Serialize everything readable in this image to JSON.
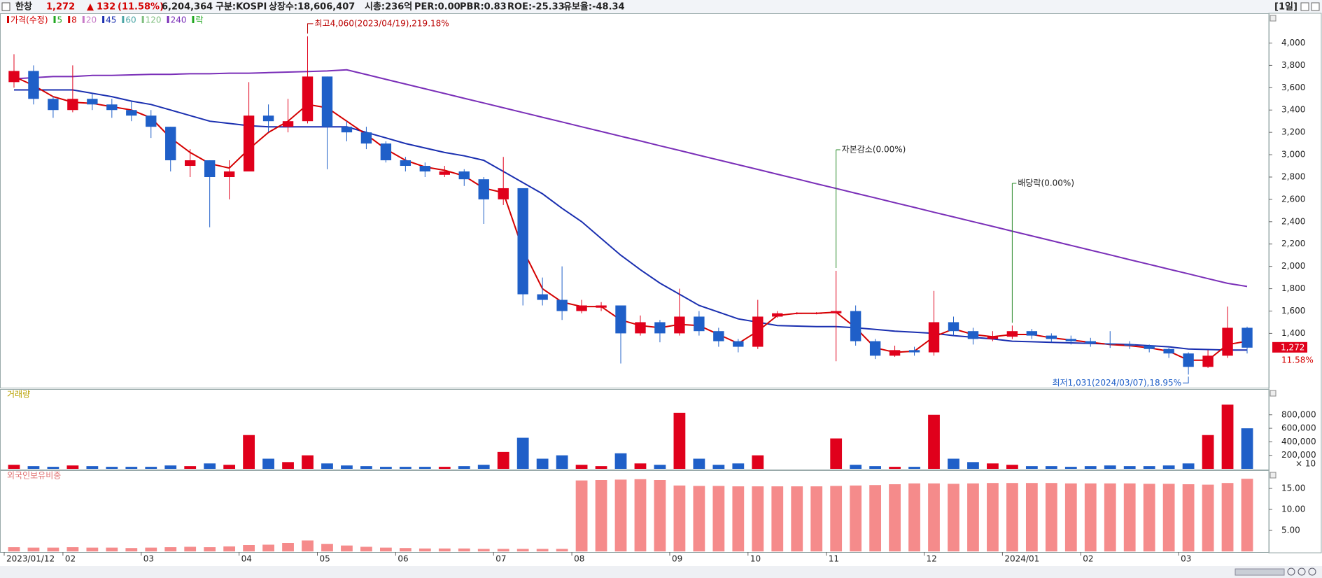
{
  "header": {
    "name": "한창",
    "price": "1,272",
    "arrow": "▲",
    "change": "132",
    "change_pct": "(11.58%)",
    "volume": "6,204,364",
    "market": "구분:KOSPI",
    "listed": "상장수:18,606,407",
    "cap": "시총:236억",
    "per": "PER:0.00",
    "pbr": "PBR:0.83",
    "roe": "ROE:-25.33",
    "reserve": "유보율:-48.34",
    "period": "[1일]"
  },
  "chart_data": [
    {
      "type": "candlestick",
      "legend": [
        {
          "label": "가격(수정)",
          "color": "#d40000"
        },
        {
          "label": "5",
          "color": "#21a821"
        },
        {
          "label": "8",
          "color": "#d40000"
        },
        {
          "label": "20",
          "color": "#c77ac7"
        },
        {
          "label": "45",
          "color": "#1a2fb0"
        },
        {
          "label": "60",
          "color": "#4aa5a5"
        },
        {
          "label": "120",
          "color": "#7fbf7f"
        },
        {
          "label": "240",
          "color": "#7a2fb8"
        },
        {
          "label": "락",
          "color": "#21a821"
        }
      ],
      "categories": [
        "2023/01/12",
        null,
        null,
        "02",
        null,
        null,
        null,
        "03",
        null,
        null,
        null,
        null,
        "04",
        null,
        null,
        null,
        "05",
        null,
        null,
        null,
        "06",
        null,
        null,
        null,
        null,
        "07",
        null,
        null,
        null,
        "08",
        null,
        null,
        null,
        null,
        "09",
        null,
        null,
        null,
        "10",
        null,
        null,
        null,
        "11",
        null,
        null,
        null,
        null,
        "12",
        null,
        null,
        null,
        "2024/01",
        null,
        null,
        null,
        "02",
        null,
        null,
        null,
        null,
        "03",
        null,
        null,
        null
      ],
      "open": [
        3650,
        3750,
        3500,
        3400,
        3500,
        3450,
        3400,
        3350,
        3250,
        2900,
        2950,
        2800,
        2850,
        3350,
        3250,
        3300,
        3700,
        3250,
        3200,
        3100,
        2950,
        2900,
        2820,
        2850,
        2780,
        2600,
        2700,
        1750,
        1700,
        1600,
        1630,
        1650,
        1400,
        1500,
        1400,
        1550,
        1420,
        1330,
        1280,
        1550,
        1575,
        1575,
        1580,
        1600,
        1330,
        1200,
        1250,
        1230,
        1500,
        1420,
        1350,
        1370,
        1420,
        1380,
        1350,
        1330,
        1310,
        1300,
        1290,
        1260,
        1220,
        1100,
        1200,
        1450
      ],
      "high": [
        3900,
        3800,
        3520,
        3800,
        3550,
        3500,
        3480,
        3400,
        3250,
        3050,
        2950,
        2950,
        3650,
        3450,
        3500,
        4060,
        3700,
        3300,
        3250,
        3120,
        2980,
        2930,
        2900,
        2870,
        2800,
        2980,
        2700,
        1900,
        2000,
        1700,
        1680,
        1650,
        1560,
        1520,
        1800,
        1600,
        1450,
        1350,
        1700,
        1600,
        1590,
        1590,
        1960,
        1650,
        1350,
        1290,
        1280,
        1780,
        1550,
        1450,
        1420,
        1470,
        1440,
        1400,
        1380,
        1360,
        1420,
        1330,
        1300,
        1270,
        1230,
        1250,
        1640,
        1460
      ],
      "low": [
        3600,
        3450,
        3330,
        3380,
        3400,
        3330,
        3300,
        3150,
        2850,
        2800,
        2350,
        2600,
        2850,
        3200,
        3200,
        3280,
        2870,
        3120,
        3050,
        2930,
        2850,
        2800,
        2800,
        2720,
        2380,
        2550,
        1650,
        1650,
        1520,
        1580,
        1600,
        1130,
        1380,
        1320,
        1380,
        1380,
        1280,
        1230,
        1260,
        1540,
        1570,
        1570,
        1150,
        1290,
        1170,
        1190,
        1200,
        1200,
        1380,
        1300,
        1330,
        1350,
        1350,
        1320,
        1300,
        1280,
        1270,
        1260,
        1230,
        1180,
        1031,
        1090,
        1180,
        1220
      ],
      "close": [
        3750,
        3500,
        3400,
        3500,
        3450,
        3400,
        3350,
        3250,
        2950,
        2950,
        2800,
        2850,
        3350,
        3300,
        3300,
        3700,
        3250,
        3200,
        3100,
        2950,
        2900,
        2850,
        2850,
        2780,
        2600,
        2700,
        1750,
        1700,
        1600,
        1650,
        1650,
        1400,
        1500,
        1400,
        1550,
        1420,
        1330,
        1280,
        1550,
        1580,
        1580,
        1580,
        1600,
        1330,
        1200,
        1250,
        1230,
        1500,
        1420,
        1350,
        1370,
        1420,
        1380,
        1350,
        1330,
        1310,
        1300,
        1290,
        1260,
        1220,
        1100,
        1200,
        1450,
        1272
      ],
      "up_color": "#e0001b",
      "down_color": "#1f5fc8",
      "ma_lines": [
        {
          "name": "240",
          "color": "#7a2fb8",
          "width": 2,
          "values": [
            3680,
            3690,
            3700,
            3700,
            3710,
            3710,
            3715,
            3720,
            3720,
            3725,
            3725,
            3730,
            3730,
            3735,
            3740,
            3745,
            3750,
            3760,
            3718,
            3675,
            3633,
            3590,
            3548,
            3505,
            3463,
            3420,
            3378,
            3335,
            3293,
            3250,
            3208,
            3165,
            3123,
            3080,
            3038,
            2995,
            2953,
            2910,
            2868,
            2825,
            2783,
            2740,
            2698,
            2655,
            2613,
            2570,
            2528,
            2485,
            2443,
            2400,
            2358,
            2315,
            2273,
            2230,
            2188,
            2145,
            2103,
            2060,
            2018,
            1975,
            1933,
            1890,
            1848,
            1820
          ]
        },
        {
          "name": "45",
          "color": "#1a2fb0",
          "width": 2,
          "values": [
            3580,
            3580,
            3580,
            3580,
            3550,
            3520,
            3480,
            3450,
            3400,
            3350,
            3300,
            3280,
            3260,
            3250,
            3250,
            3250,
            3250,
            3250,
            3200,
            3150,
            3100,
            3060,
            3020,
            2990,
            2950,
            2850,
            2750,
            2650,
            2520,
            2400,
            2250,
            2100,
            1970,
            1850,
            1750,
            1650,
            1590,
            1530,
            1500,
            1470,
            1465,
            1460,
            1460,
            1450,
            1435,
            1420,
            1410,
            1400,
            1380,
            1365,
            1350,
            1330,
            1325,
            1320,
            1315,
            1310,
            1305,
            1300,
            1290,
            1280,
            1260,
            1255,
            1250,
            1250
          ]
        },
        {
          "name": "8",
          "color": "#d40000",
          "width": 2,
          "values": [
            3700,
            3620,
            3520,
            3470,
            3460,
            3430,
            3400,
            3330,
            3150,
            3020,
            2920,
            2880,
            3050,
            3200,
            3300,
            3450,
            3420,
            3300,
            3180,
            3050,
            2950,
            2890,
            2860,
            2810,
            2700,
            2660,
            2150,
            1800,
            1680,
            1640,
            1640,
            1520,
            1470,
            1450,
            1480,
            1470,
            1390,
            1310,
            1420,
            1560,
            1580,
            1580,
            1590,
            1450,
            1270,
            1230,
            1240,
            1370,
            1440,
            1390,
            1370,
            1390,
            1390,
            1360,
            1340,
            1320,
            1300,
            1290,
            1270,
            1240,
            1160,
            1160,
            1300,
            1330
          ]
        }
      ],
      "ylim": [
        920,
        4260
      ],
      "yticks": [
        {
          "value": 1400,
          "label": "1,400"
        },
        {
          "value": 1600,
          "label": "1,600"
        },
        {
          "value": 1800,
          "label": "1,800"
        },
        {
          "value": 2000,
          "label": "2,000"
        },
        {
          "value": 2200,
          "label": "2,200"
        },
        {
          "value": 2400,
          "label": "2,400"
        },
        {
          "value": 2600,
          "label": "2,600"
        },
        {
          "value": 2800,
          "label": "2,800"
        },
        {
          "value": 3000,
          "label": "3,000"
        },
        {
          "value": 3200,
          "label": "3,200"
        },
        {
          "value": 3400,
          "label": "3,400"
        },
        {
          "value": 3600,
          "label": "3,600"
        },
        {
          "value": 3800,
          "label": "3,800"
        },
        {
          "value": 4000,
          "label": "4,000"
        }
      ],
      "high_note": "최고4,060(2023/04/19),219.18%",
      "low_note": "최저1,031(2024/03/07),18.95%",
      "events": [
        "자본감소(0.00%)",
        "배당락(0.00%)"
      ],
      "last_price_label": "1,272",
      "last_change_label": "11.58%"
    },
    {
      "type": "bar",
      "title": "거래량",
      "values": [
        60000,
        40000,
        30000,
        50000,
        40000,
        30000,
        30000,
        30000,
        50000,
        40000,
        80000,
        60000,
        500000,
        150000,
        100000,
        200000,
        80000,
        50000,
        40000,
        30000,
        30000,
        30000,
        30000,
        40000,
        60000,
        250000,
        460000,
        150000,
        200000,
        60000,
        40000,
        230000,
        80000,
        60000,
        830000,
        150000,
        60000,
        80000,
        200000,
        0,
        0,
        0,
        450000,
        60000,
        40000,
        30000,
        30000,
        800000,
        150000,
        100000,
        80000,
        60000,
        40000,
        40000,
        30000,
        40000,
        50000,
        40000,
        40000,
        50000,
        80000,
        500000,
        950000,
        600000
      ],
      "ylim": [
        0,
        1160000
      ],
      "yticks": [
        {
          "value": 200000,
          "label": "200,000"
        },
        {
          "value": 400000,
          "label": "400,000"
        },
        {
          "value": 600000,
          "label": "600,000"
        },
        {
          "value": 800000,
          "label": "800,000"
        }
      ],
      "unit_label": "× 10"
    },
    {
      "type": "bar",
      "title": "외국인보유비중",
      "color": "#f58b8b",
      "values": [
        1.0,
        0.9,
        0.9,
        1.0,
        0.9,
        0.9,
        0.8,
        0.9,
        1.0,
        1.1,
        1.0,
        1.2,
        1.5,
        1.6,
        2.0,
        2.6,
        1.8,
        1.4,
        1.1,
        0.9,
        0.8,
        0.7,
        0.7,
        0.7,
        0.6,
        0.6,
        0.6,
        0.6,
        0.6,
        16.9,
        17.0,
        17.1,
        17.2,
        17.0,
        15.7,
        15.6,
        15.6,
        15.5,
        15.5,
        15.5,
        15.5,
        15.5,
        15.6,
        15.7,
        15.8,
        16.0,
        16.2,
        16.2,
        16.1,
        16.2,
        16.3,
        16.3,
        16.3,
        16.3,
        16.2,
        16.2,
        16.2,
        16.2,
        16.1,
        16.1,
        16.0,
        15.9,
        16.3,
        17.3
      ],
      "ylim": [
        0,
        19
      ],
      "yticks": [
        {
          "value": 5,
          "label": "5.00"
        },
        {
          "value": 10,
          "label": "10.00"
        },
        {
          "value": 15,
          "label": "15.00"
        }
      ]
    }
  ]
}
